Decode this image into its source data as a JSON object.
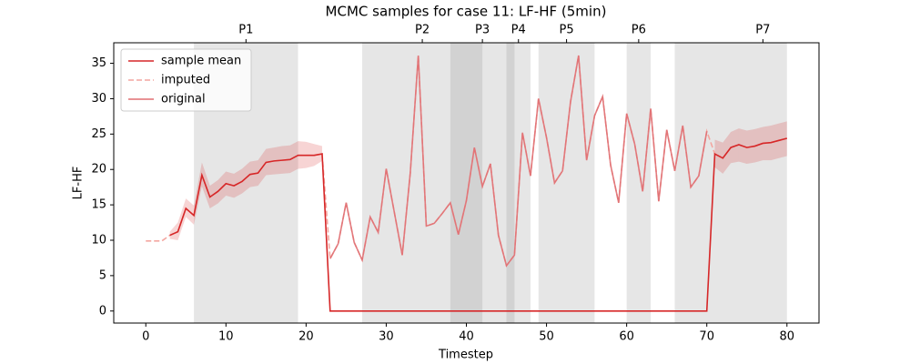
{
  "chart_data": {
    "type": "line",
    "title": "MCMC samples for case 11: LF-HF (5min)",
    "x_label": "Timestep",
    "y_label": "LF-HF",
    "x": [
      0,
      1,
      2,
      3,
      4,
      5,
      6,
      7,
      8,
      9,
      10,
      11,
      12,
      13,
      14,
      15,
      16,
      17,
      18,
      19,
      20,
      21,
      22,
      23,
      24,
      25,
      26,
      27,
      28,
      29,
      30,
      31,
      32,
      33,
      34,
      35,
      36,
      37,
      38,
      39,
      40,
      41,
      42,
      43,
      44,
      45,
      46,
      47,
      48,
      49,
      50,
      51,
      52,
      53,
      54,
      55,
      56,
      57,
      58,
      59,
      60,
      61,
      62,
      63,
      64,
      65,
      66,
      67,
      68,
      69,
      70,
      71,
      72,
      73,
      74,
      75,
      76,
      77,
      78,
      79,
      80
    ],
    "series": [
      {
        "name": "sample mean",
        "color": "#d62728",
        "dashed": false,
        "values": [
          null,
          null,
          null,
          10.7,
          11.2,
          14.5,
          13.5,
          19.2,
          16.1,
          16.9,
          18.0,
          17.7,
          18.3,
          19.3,
          19.5,
          21.0,
          21.2,
          21.3,
          21.4,
          22.0,
          22.0,
          22.0,
          22.2,
          0,
          0,
          0,
          0,
          0,
          0,
          0,
          0,
          0,
          0,
          0,
          0,
          0,
          0,
          0,
          0,
          0,
          0,
          0,
          0,
          0,
          0,
          0,
          0,
          0,
          0,
          0,
          0,
          0,
          0,
          0,
          0,
          0,
          0,
          0,
          0,
          0,
          0,
          0,
          0,
          0,
          0,
          0,
          0,
          0,
          0,
          0,
          0,
          22.2,
          21.6,
          23.1,
          23.5,
          23.1,
          23.3,
          23.7,
          23.8,
          24.1,
          24.4
        ],
        "lower": [
          null,
          null,
          null,
          10.2,
          10.0,
          13.3,
          12.2,
          17.6,
          14.5,
          15.2,
          16.3,
          16.0,
          16.6,
          17.5,
          17.7,
          19.2,
          19.3,
          19.4,
          19.5,
          20.1,
          20.2,
          20.5,
          21.2,
          null,
          null,
          null,
          null,
          null,
          null,
          null,
          null,
          null,
          null,
          null,
          null,
          null,
          null,
          null,
          null,
          null,
          null,
          null,
          null,
          null,
          null,
          null,
          null,
          null,
          null,
          null,
          null,
          null,
          null,
          null,
          null,
          null,
          null,
          null,
          null,
          null,
          null,
          null,
          null,
          null,
          null,
          null,
          null,
          null,
          null,
          null,
          null,
          20.3,
          19.4,
          20.9,
          21.1,
          20.8,
          21.0,
          21.3,
          21.3,
          21.6,
          21.9
        ],
        "upper": [
          null,
          null,
          null,
          11.2,
          12.5,
          15.9,
          14.9,
          21.0,
          17.7,
          18.5,
          19.7,
          19.4,
          20.1,
          21.1,
          21.3,
          22.9,
          23.1,
          23.3,
          23.4,
          24.0,
          23.9,
          23.6,
          23.3,
          null,
          null,
          null,
          null,
          null,
          null,
          null,
          null,
          null,
          null,
          null,
          null,
          null,
          null,
          null,
          null,
          null,
          null,
          null,
          null,
          null,
          null,
          null,
          null,
          null,
          null,
          null,
          null,
          null,
          null,
          null,
          null,
          null,
          null,
          null,
          null,
          null,
          null,
          null,
          null,
          null,
          null,
          null,
          null,
          null,
          null,
          null,
          null,
          24.2,
          23.8,
          25.3,
          25.8,
          25.5,
          25.7,
          26.0,
          26.2,
          26.5,
          26.8
        ]
      },
      {
        "name": "imputed",
        "color": "#f4a6a0",
        "dashed": true,
        "values": [
          9.9,
          9.9,
          9.9,
          10.7,
          11.2,
          14.5,
          13.5,
          19.2,
          16.1,
          16.9,
          18.0,
          17.7,
          18.3,
          19.3,
          19.5,
          21.0,
          21.2,
          21.3,
          21.4,
          22.0,
          22.0,
          22.0,
          22.2,
          7.4,
          9.5,
          15.3,
          9.7,
          7.2,
          13.3,
          11.1,
          20.1,
          14.0,
          7.9,
          19.5,
          36.1,
          12.0,
          12.4,
          13.8,
          15.3,
          10.8,
          15.6,
          23.1,
          17.6,
          20.8,
          10.7,
          6.4,
          7.9,
          25.2,
          19.1,
          30.0,
          24.5,
          18.1,
          19.8,
          29.6,
          36.1,
          21.3,
          27.6,
          30.3,
          20.6,
          15.3,
          27.9,
          23.6,
          16.9,
          28.6,
          15.5,
          25.6,
          19.8,
          26.2,
          17.5,
          19.1,
          25.4,
          22.2,
          21.6,
          23.1,
          23.5,
          23.1,
          23.3,
          23.7,
          23.8,
          24.1,
          24.4
        ]
      },
      {
        "name": "original",
        "color": "#e06f72",
        "dashed": false,
        "values": [
          null,
          null,
          null,
          null,
          null,
          null,
          null,
          null,
          null,
          null,
          null,
          null,
          null,
          null,
          null,
          null,
          null,
          null,
          null,
          null,
          null,
          null,
          null,
          7.4,
          9.5,
          15.3,
          9.7,
          7.2,
          13.3,
          11.1,
          20.1,
          14.0,
          7.9,
          19.5,
          36.1,
          12.0,
          12.4,
          13.8,
          15.3,
          10.8,
          15.6,
          23.1,
          17.6,
          20.8,
          10.7,
          6.4,
          7.9,
          25.2,
          19.1,
          30.0,
          24.5,
          18.1,
          19.8,
          29.6,
          36.1,
          21.3,
          27.6,
          30.3,
          20.6,
          15.3,
          27.9,
          23.6,
          16.9,
          28.6,
          15.5,
          25.6,
          19.8,
          26.2,
          17.5,
          19.1,
          25.4,
          null,
          null,
          null,
          null,
          null,
          null,
          null,
          null,
          null,
          null
        ]
      }
    ],
    "phases": [
      {
        "label": "P1",
        "start": 6,
        "end": 19
      },
      {
        "label": "P2",
        "start": 27,
        "end": 42
      },
      {
        "label": "P3",
        "start": 38,
        "end": 46
      },
      {
        "label": "P4",
        "start": 45,
        "end": 48
      },
      {
        "label": "P5",
        "start": 49,
        "end": 56
      },
      {
        "label": "P6",
        "start": 60,
        "end": 63
      },
      {
        "label": null,
        "start": 66,
        "end": 74
      },
      {
        "label": "P7",
        "start": 74,
        "end": 80
      }
    ],
    "xlim": [
      -4,
      84
    ],
    "ylim": [
      -1.7,
      37.9
    ],
    "xticks": [
      0,
      10,
      20,
      30,
      40,
      50,
      60,
      70,
      80
    ],
    "yticks": [
      0,
      5,
      10,
      15,
      20,
      25,
      30,
      35
    ],
    "legend": "upper left"
  }
}
